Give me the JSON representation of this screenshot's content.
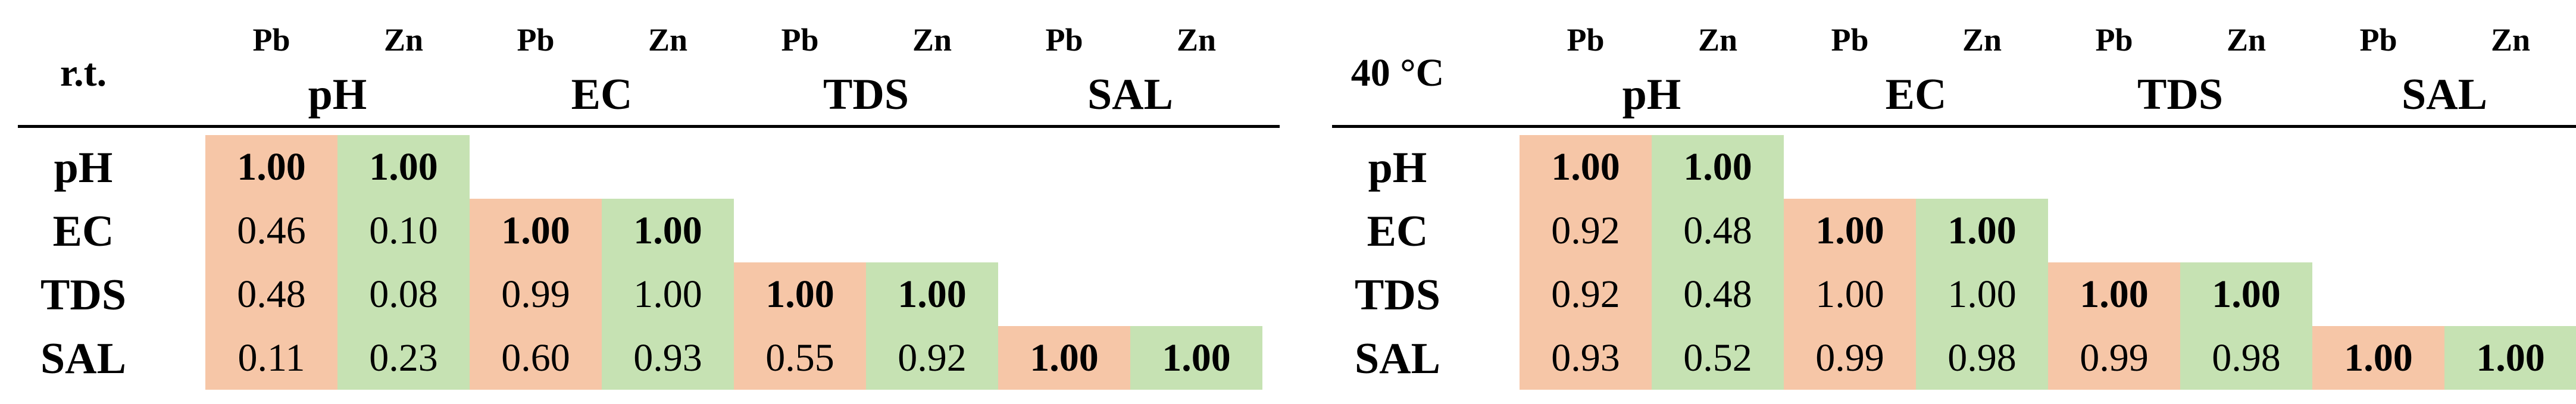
{
  "colors": {
    "pb_fill": "#f6c6a7",
    "zn_fill": "#c6e2b3",
    "rule": "#000000"
  },
  "tables": [
    {
      "corner_label": "r.t.",
      "metal_labels": [
        "Pb",
        "Zn"
      ],
      "groups": [
        "pH",
        "EC",
        "TDS",
        "SAL"
      ],
      "rows": [
        {
          "label": "pH",
          "cells": [
            {
              "metal": "Pb",
              "value": "1.00",
              "bold": true
            },
            {
              "metal": "Zn",
              "value": "1.00",
              "bold": true
            }
          ]
        },
        {
          "label": "EC",
          "cells": [
            {
              "metal": "Pb",
              "value": "0.46",
              "bold": false
            },
            {
              "metal": "Zn",
              "value": "0.10",
              "bold": false
            },
            {
              "metal": "Pb",
              "value": "1.00",
              "bold": true
            },
            {
              "metal": "Zn",
              "value": "1.00",
              "bold": true
            }
          ]
        },
        {
          "label": "TDS",
          "cells": [
            {
              "metal": "Pb",
              "value": "0.48",
              "bold": false
            },
            {
              "metal": "Zn",
              "value": "0.08",
              "bold": false
            },
            {
              "metal": "Pb",
              "value": "0.99",
              "bold": false
            },
            {
              "metal": "Zn",
              "value": "1.00",
              "bold": false
            },
            {
              "metal": "Pb",
              "value": "1.00",
              "bold": true
            },
            {
              "metal": "Zn",
              "value": "1.00",
              "bold": true
            }
          ]
        },
        {
          "label": "SAL",
          "cells": [
            {
              "metal": "Pb",
              "value": "0.11",
              "bold": false
            },
            {
              "metal": "Zn",
              "value": "0.23",
              "bold": false
            },
            {
              "metal": "Pb",
              "value": "0.60",
              "bold": false
            },
            {
              "metal": "Zn",
              "value": "0.93",
              "bold": false
            },
            {
              "metal": "Pb",
              "value": "0.55",
              "bold": false
            },
            {
              "metal": "Zn",
              "value": "0.92",
              "bold": false
            },
            {
              "metal": "Pb",
              "value": "1.00",
              "bold": true
            },
            {
              "metal": "Zn",
              "value": "1.00",
              "bold": true
            }
          ]
        }
      ]
    },
    {
      "corner_label": "40 °C",
      "metal_labels": [
        "Pb",
        "Zn"
      ],
      "groups": [
        "pH",
        "EC",
        "TDS",
        "SAL"
      ],
      "rows": [
        {
          "label": "pH",
          "cells": [
            {
              "metal": "Pb",
              "value": "1.00",
              "bold": true
            },
            {
              "metal": "Zn",
              "value": "1.00",
              "bold": true
            }
          ]
        },
        {
          "label": "EC",
          "cells": [
            {
              "metal": "Pb",
              "value": "0.92",
              "bold": false
            },
            {
              "metal": "Zn",
              "value": "0.48",
              "bold": false
            },
            {
              "metal": "Pb",
              "value": "1.00",
              "bold": true
            },
            {
              "metal": "Zn",
              "value": "1.00",
              "bold": true
            }
          ]
        },
        {
          "label": "TDS",
          "cells": [
            {
              "metal": "Pb",
              "value": "0.92",
              "bold": false
            },
            {
              "metal": "Zn",
              "value": "0.48",
              "bold": false
            },
            {
              "metal": "Pb",
              "value": "1.00",
              "bold": false
            },
            {
              "metal": "Zn",
              "value": "1.00",
              "bold": false
            },
            {
              "metal": "Pb",
              "value": "1.00",
              "bold": true
            },
            {
              "metal": "Zn",
              "value": "1.00",
              "bold": true
            }
          ]
        },
        {
          "label": "SAL",
          "cells": [
            {
              "metal": "Pb",
              "value": "0.93",
              "bold": false
            },
            {
              "metal": "Zn",
              "value": "0.52",
              "bold": false
            },
            {
              "metal": "Pb",
              "value": "0.99",
              "bold": false
            },
            {
              "metal": "Zn",
              "value": "0.98",
              "bold": false
            },
            {
              "metal": "Pb",
              "value": "0.99",
              "bold": false
            },
            {
              "metal": "Zn",
              "value": "0.98",
              "bold": false
            },
            {
              "metal": "Pb",
              "value": "1.00",
              "bold": true
            },
            {
              "metal": "Zn",
              "value": "1.00",
              "bold": true
            }
          ]
        }
      ]
    }
  ]
}
